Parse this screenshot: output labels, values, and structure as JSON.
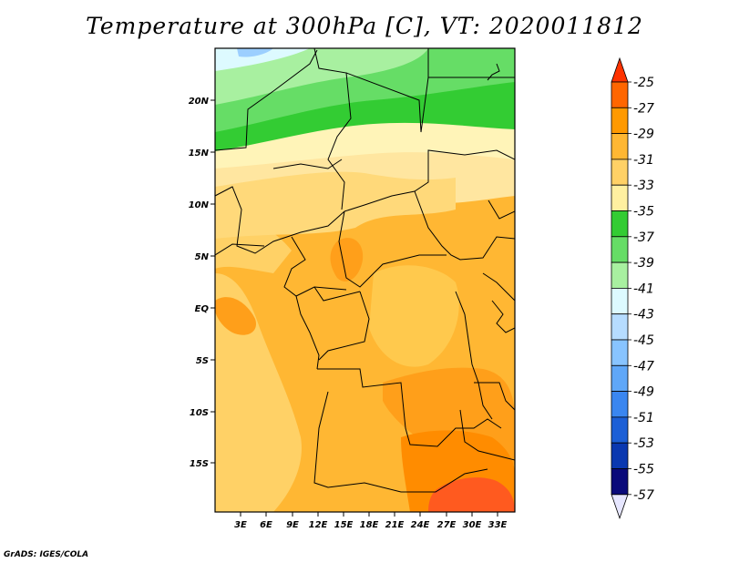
{
  "title": "Temperature at 300hPa [C], VT: 2020011812",
  "credit": "GrADS: IGES/COLA",
  "map": {
    "lat_labels": [
      "20N",
      "15N",
      "10N",
      "5N",
      "EQ",
      "5S",
      "10S",
      "15S"
    ],
    "lon_labels": [
      "3E",
      "6E",
      "9E",
      "12E",
      "15E",
      "18E",
      "21E",
      "24E",
      "27E",
      "30E",
      "33E"
    ]
  },
  "colorbar": {
    "labels": [
      "-25",
      "-27",
      "-29",
      "-31",
      "-33",
      "-35",
      "-37",
      "-39",
      "-41",
      "-43",
      "-45",
      "-47",
      "-49",
      "-51",
      "-53",
      "-55",
      "-57"
    ],
    "colors": [
      "#ff3300",
      "#ff6600",
      "#ff9900",
      "#ffb733",
      "#ffd166",
      "#fff0a0",
      "#33cc33",
      "#66dd66",
      "#a8f0a0",
      "#ddfaff",
      "#b6dcff",
      "#88c4ff",
      "#5fa7f8",
      "#3a86f0",
      "#1c5fd6",
      "#0a38b0",
      "#0a0a7a",
      "#e6e6ff"
    ]
  }
}
